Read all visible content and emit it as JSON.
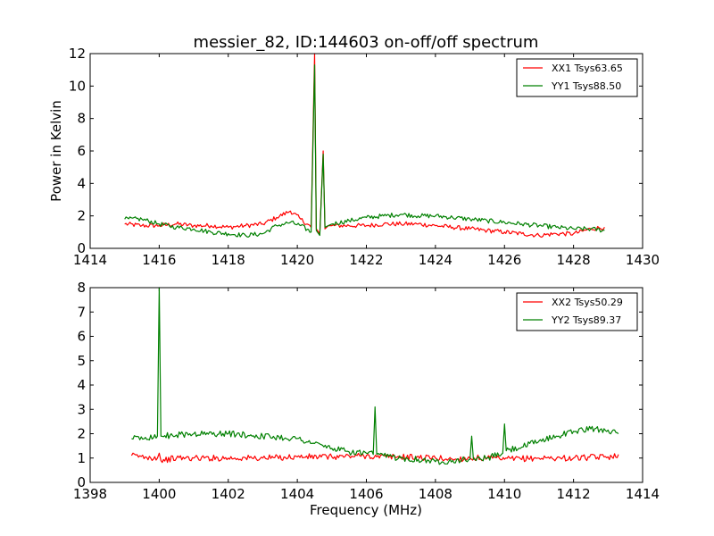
{
  "figure_title": "messier_82, ID:144603 on-off/off spectrum",
  "colors": {
    "xx": "#ff0000",
    "yy": "#008000"
  },
  "chart_data": [
    {
      "type": "line",
      "title": "messier_82, ID:144603 on-off/off spectrum",
      "xlabel": "",
      "ylabel": "Power in Kelvin",
      "xlim": [
        1414,
        1430
      ],
      "ylim": [
        0,
        12
      ],
      "xticks": [
        "1414",
        "1416",
        "1418",
        "1420",
        "1422",
        "1424",
        "1426",
        "1428",
        "1430"
      ],
      "yticks": [
        "0",
        "2",
        "4",
        "6",
        "8",
        "10",
        "12"
      ],
      "legend": "top-right",
      "grid": false,
      "series": [
        {
          "name": "XX1 Tsys63.65",
          "color": "#ff0000",
          "x": [
            1415.0,
            1415.5,
            1416.0,
            1416.5,
            1417.0,
            1417.5,
            1418.0,
            1418.5,
            1419.0,
            1419.4,
            1419.8,
            1420.1,
            1420.4,
            1420.5,
            1420.55,
            1420.65,
            1420.75,
            1420.8,
            1420.9,
            1421.0,
            1421.5,
            1422.0,
            1422.5,
            1423.0,
            1423.5,
            1424.0,
            1424.5,
            1425.0,
            1425.5,
            1426.0,
            1426.5,
            1427.0,
            1427.5,
            1428.0,
            1428.5,
            1428.9
          ],
          "y": [
            1.5,
            1.4,
            1.4,
            1.5,
            1.4,
            1.4,
            1.3,
            1.4,
            1.5,
            1.9,
            2.3,
            1.8,
            1.3,
            12.0,
            1.2,
            0.9,
            6.0,
            1.2,
            1.4,
            1.4,
            1.4,
            1.4,
            1.5,
            1.5,
            1.5,
            1.4,
            1.3,
            1.2,
            1.1,
            1.0,
            0.9,
            0.8,
            0.9,
            0.9,
            1.2,
            1.3
          ]
        },
        {
          "name": "YY1 Tsys88.50",
          "color": "#008000",
          "x": [
            1415.0,
            1415.5,
            1416.0,
            1416.5,
            1417.0,
            1417.5,
            1418.0,
            1418.5,
            1419.0,
            1419.4,
            1419.8,
            1420.1,
            1420.4,
            1420.5,
            1420.55,
            1420.65,
            1420.75,
            1420.8,
            1420.9,
            1421.0,
            1421.5,
            1422.0,
            1422.5,
            1423.0,
            1423.5,
            1424.0,
            1424.5,
            1425.0,
            1425.5,
            1426.0,
            1426.5,
            1427.0,
            1427.5,
            1428.0,
            1428.5,
            1428.9
          ],
          "y": [
            1.8,
            1.8,
            1.5,
            1.3,
            1.2,
            1.0,
            0.9,
            0.8,
            0.9,
            1.4,
            1.6,
            1.4,
            1.0,
            11.3,
            1.1,
            0.8,
            5.8,
            1.3,
            1.4,
            1.5,
            1.7,
            1.9,
            2.0,
            2.1,
            2.0,
            2.0,
            1.9,
            1.8,
            1.7,
            1.6,
            1.5,
            1.4,
            1.3,
            1.2,
            1.2,
            1.1
          ]
        }
      ]
    },
    {
      "type": "line",
      "title": "",
      "xlabel": "Frequency (MHz)",
      "ylabel": "",
      "xlim": [
        1398,
        1414
      ],
      "ylim": [
        0,
        8
      ],
      "xticks": [
        "1398",
        "1400",
        "1402",
        "1404",
        "1406",
        "1408",
        "1410",
        "1412",
        "1414"
      ],
      "yticks": [
        "0",
        "1",
        "2",
        "3",
        "4",
        "5",
        "6",
        "7",
        "8"
      ],
      "legend": "top-right",
      "grid": false,
      "series": [
        {
          "name": "XX2 Tsys50.29",
          "color": "#ff0000",
          "x": [
            1399.2,
            1399.6,
            1399.95,
            1400.0,
            1400.05,
            1400.5,
            1401.0,
            1402.0,
            1403.0,
            1404.0,
            1405.0,
            1406.0,
            1406.3,
            1407.0,
            1408.0,
            1408.5,
            1409.0,
            1409.5,
            1410.0,
            1411.0,
            1412.0,
            1413.0,
            1413.3
          ],
          "y": [
            1.1,
            1.05,
            1.0,
            1.2,
            0.9,
            1.0,
            1.0,
            1.0,
            1.0,
            1.05,
            1.05,
            1.1,
            1.05,
            1.05,
            1.0,
            0.95,
            1.0,
            1.0,
            0.95,
            1.0,
            1.0,
            1.05,
            1.15
          ]
        },
        {
          "name": "YY2 Tsys89.37",
          "color": "#008000",
          "x": [
            1399.2,
            1399.6,
            1399.95,
            1400.0,
            1400.05,
            1400.5,
            1401.0,
            1402.0,
            1403.0,
            1404.0,
            1404.5,
            1405.0,
            1405.5,
            1406.0,
            1406.2,
            1406.25,
            1406.3,
            1406.5,
            1407.0,
            1407.5,
            1408.0,
            1408.5,
            1409.0,
            1409.05,
            1409.1,
            1409.5,
            1409.95,
            1410.0,
            1410.05,
            1410.5,
            1411.0,
            1411.5,
            1412.0,
            1412.5,
            1413.0,
            1413.3
          ],
          "y": [
            1.8,
            1.85,
            1.9,
            8.0,
            1.9,
            1.95,
            2.0,
            2.0,
            1.9,
            1.8,
            1.6,
            1.4,
            1.25,
            1.2,
            1.15,
            3.1,
            1.15,
            1.1,
            1.0,
            0.95,
            0.85,
            0.9,
            0.95,
            1.9,
            0.95,
            1.0,
            1.2,
            2.4,
            1.3,
            1.45,
            1.7,
            1.9,
            2.1,
            2.2,
            2.15,
            2.0
          ]
        }
      ]
    }
  ]
}
